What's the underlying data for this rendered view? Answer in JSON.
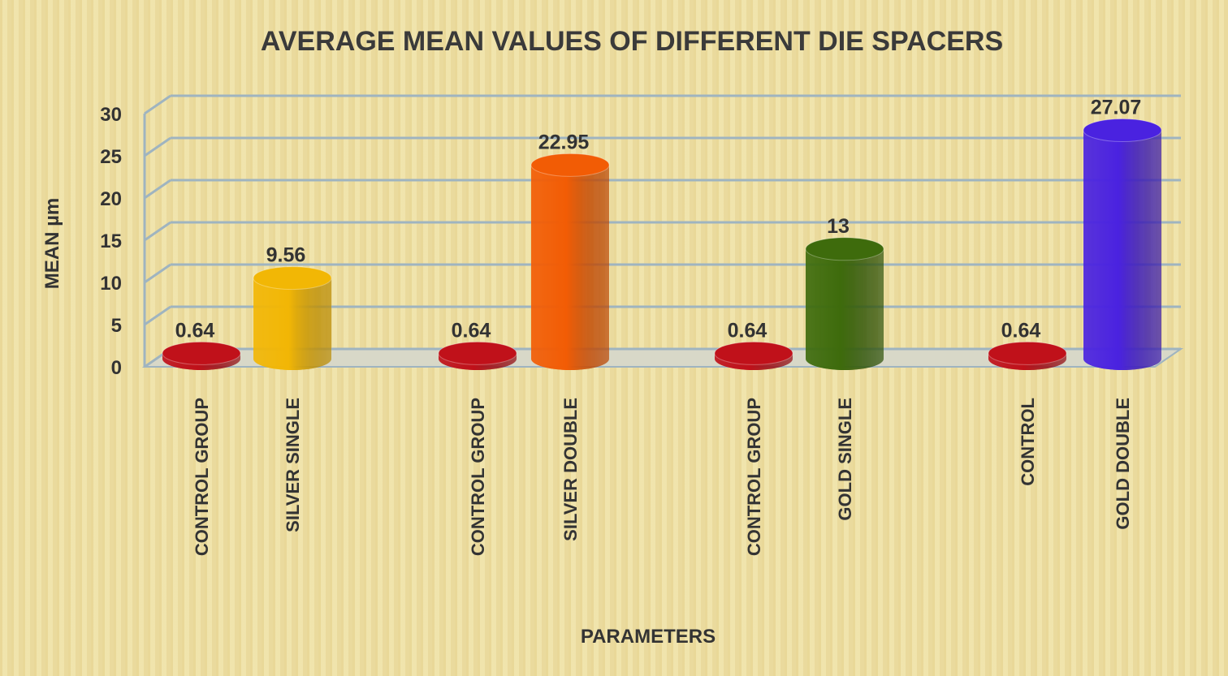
{
  "chart_data": {
    "type": "bar",
    "style": "3d-cylinder",
    "title": "AVERAGE MEAN VALUES OF DIFFERENT DIE SPACERS",
    "xlabel": "PARAMETERS",
    "ylabel": "MEAN µm",
    "ylim": [
      0,
      30
    ],
    "yticks": [
      "0",
      "5",
      "10",
      "15",
      "20",
      "25",
      "30"
    ],
    "grid": true,
    "categories": [
      "CONTROL GROUP",
      "SILVER SINGLE",
      "CONTROL GROUP",
      "SILVER DOUBLE",
      "CONTROL GROUP",
      "GOLD SINGLE",
      "CONTROL",
      "GOLD DOUBLE"
    ],
    "values": [
      0.64,
      9.56,
      0.64,
      22.95,
      0.64,
      13,
      0.64,
      27.07
    ],
    "data_labels": [
      "0.64",
      "9.56",
      "0.64",
      "22.95",
      "0.64",
      "13",
      "0.64",
      "27.07"
    ],
    "colors": [
      "#c0111a",
      "#f2b705",
      "#c0111a",
      "#f25c05",
      "#c0111a",
      "#3e6b0c",
      "#c0111a",
      "#4a22e0"
    ]
  }
}
